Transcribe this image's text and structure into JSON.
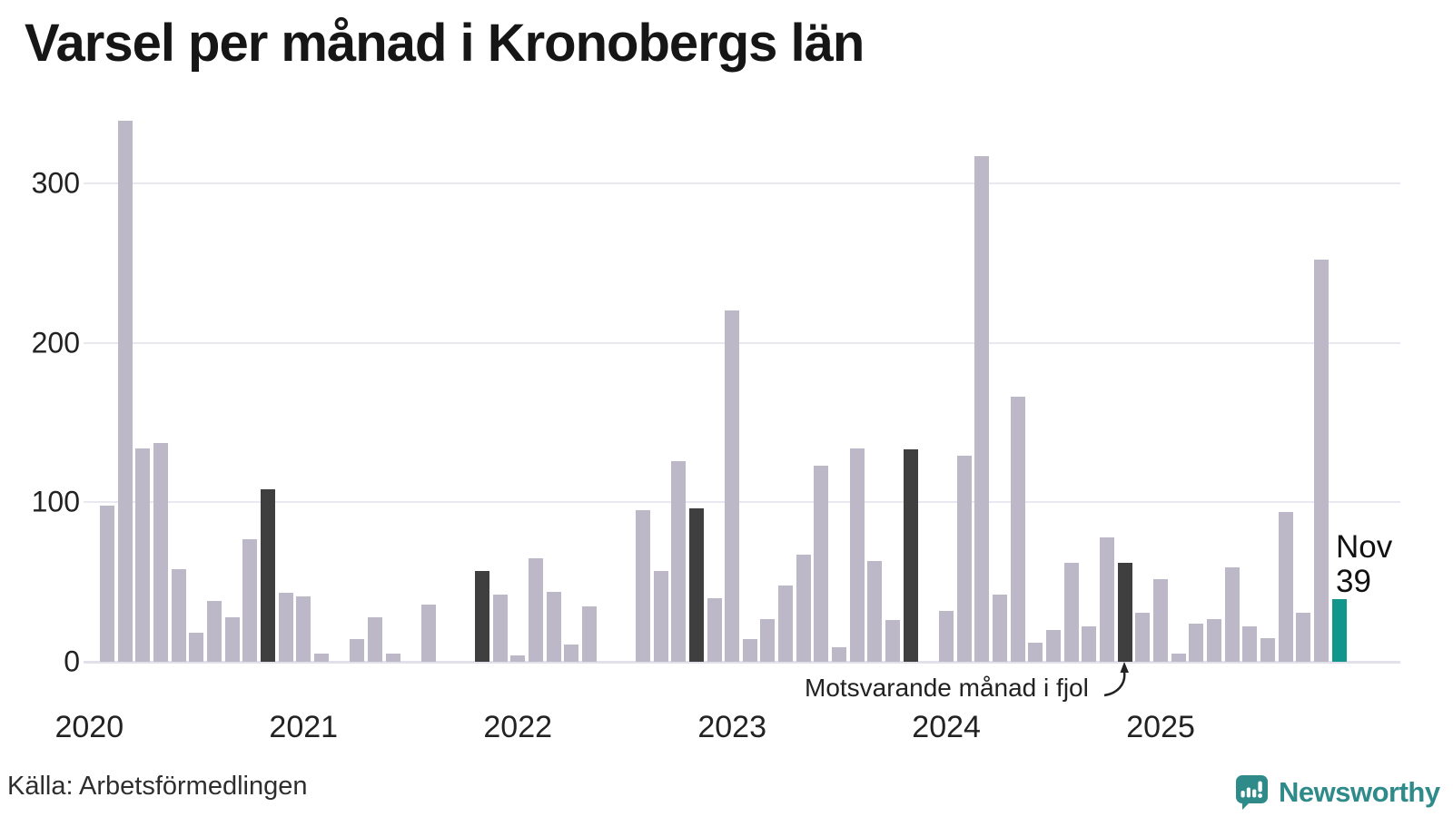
{
  "title": "Varsel per månad i Kronobergs län",
  "source": "Källa: Arbetsförmedlingen",
  "annotation": "Motsvarande månad i fjol",
  "highlight_label": {
    "month": "Nov",
    "value": "39"
  },
  "logo": {
    "text": "Newsworthy",
    "icon": "newsworthy-speech-bubble-chart-icon"
  },
  "colors": {
    "bar": "#bcb8c8",
    "last_year_bar": "#3f3f3f",
    "latest_bar": "#12968b",
    "logo_teal": "#2e8b89",
    "grid": "#e9e7ef",
    "axis": "#e2e0e9",
    "text": "#222222"
  },
  "chart_data": {
    "type": "bar",
    "title": "Varsel per månad i Kronobergs län",
    "xlabel": "",
    "ylabel": "",
    "y_ticks": [
      0,
      100,
      200,
      300
    ],
    "ylim": [
      0,
      345
    ],
    "grid": "horizontal",
    "legend_position": "none",
    "year_ticks": [
      "2020",
      "2021",
      "2022",
      "2023",
      "2024",
      "2025"
    ],
    "highlight_note": "dark bars = same month (Nov) previous years; teal bar = latest month Nov 2025 = 39",
    "months": [
      {
        "m": "2020-01",
        "value": 0,
        "kind": "normal"
      },
      {
        "m": "2020-02",
        "value": 98,
        "kind": "normal"
      },
      {
        "m": "2020-03",
        "value": 339,
        "kind": "normal"
      },
      {
        "m": "2020-04",
        "value": 134,
        "kind": "normal"
      },
      {
        "m": "2020-05",
        "value": 137,
        "kind": "normal"
      },
      {
        "m": "2020-06",
        "value": 58,
        "kind": "normal"
      },
      {
        "m": "2020-07",
        "value": 18,
        "kind": "normal"
      },
      {
        "m": "2020-08",
        "value": 38,
        "kind": "normal"
      },
      {
        "m": "2020-09",
        "value": 28,
        "kind": "normal"
      },
      {
        "m": "2020-10",
        "value": 77,
        "kind": "normal"
      },
      {
        "m": "2020-11",
        "value": 108,
        "kind": "lastyear"
      },
      {
        "m": "2020-12",
        "value": 43,
        "kind": "normal"
      },
      {
        "m": "2021-01",
        "value": 41,
        "kind": "normal"
      },
      {
        "m": "2021-02",
        "value": 5,
        "kind": "normal"
      },
      {
        "m": "2021-03",
        "value": 0,
        "kind": "normal"
      },
      {
        "m": "2021-04",
        "value": 14,
        "kind": "normal"
      },
      {
        "m": "2021-05",
        "value": 28,
        "kind": "normal"
      },
      {
        "m": "2021-06",
        "value": 5,
        "kind": "normal"
      },
      {
        "m": "2021-07",
        "value": 0,
        "kind": "normal"
      },
      {
        "m": "2021-08",
        "value": 36,
        "kind": "normal"
      },
      {
        "m": "2021-09",
        "value": 0,
        "kind": "normal"
      },
      {
        "m": "2021-10",
        "value": 0,
        "kind": "normal"
      },
      {
        "m": "2021-11",
        "value": 57,
        "kind": "lastyear"
      },
      {
        "m": "2021-12",
        "value": 42,
        "kind": "normal"
      },
      {
        "m": "2022-01",
        "value": 4,
        "kind": "normal"
      },
      {
        "m": "2022-02",
        "value": 65,
        "kind": "normal"
      },
      {
        "m": "2022-03",
        "value": 44,
        "kind": "normal"
      },
      {
        "m": "2022-04",
        "value": 11,
        "kind": "normal"
      },
      {
        "m": "2022-05",
        "value": 35,
        "kind": "normal"
      },
      {
        "m": "2022-06",
        "value": 0,
        "kind": "normal"
      },
      {
        "m": "2022-07",
        "value": 0,
        "kind": "normal"
      },
      {
        "m": "2022-08",
        "value": 95,
        "kind": "normal"
      },
      {
        "m": "2022-09",
        "value": 57,
        "kind": "normal"
      },
      {
        "m": "2022-10",
        "value": 126,
        "kind": "normal"
      },
      {
        "m": "2022-11",
        "value": 96,
        "kind": "lastyear"
      },
      {
        "m": "2022-12",
        "value": 40,
        "kind": "normal"
      },
      {
        "m": "2023-01",
        "value": 220,
        "kind": "normal"
      },
      {
        "m": "2023-02",
        "value": 14,
        "kind": "normal"
      },
      {
        "m": "2023-03",
        "value": 27,
        "kind": "normal"
      },
      {
        "m": "2023-04",
        "value": 48,
        "kind": "normal"
      },
      {
        "m": "2023-05",
        "value": 67,
        "kind": "normal"
      },
      {
        "m": "2023-06",
        "value": 123,
        "kind": "normal"
      },
      {
        "m": "2023-07",
        "value": 9,
        "kind": "normal"
      },
      {
        "m": "2023-08",
        "value": 134,
        "kind": "normal"
      },
      {
        "m": "2023-09",
        "value": 63,
        "kind": "normal"
      },
      {
        "m": "2023-10",
        "value": 26,
        "kind": "normal"
      },
      {
        "m": "2023-11",
        "value": 133,
        "kind": "lastyear"
      },
      {
        "m": "2023-12",
        "value": 0,
        "kind": "normal"
      },
      {
        "m": "2024-01",
        "value": 32,
        "kind": "normal"
      },
      {
        "m": "2024-02",
        "value": 129,
        "kind": "normal"
      },
      {
        "m": "2024-03",
        "value": 317,
        "kind": "normal"
      },
      {
        "m": "2024-04",
        "value": 42,
        "kind": "normal"
      },
      {
        "m": "2024-05",
        "value": 166,
        "kind": "normal"
      },
      {
        "m": "2024-06",
        "value": 12,
        "kind": "normal"
      },
      {
        "m": "2024-07",
        "value": 20,
        "kind": "normal"
      },
      {
        "m": "2024-08",
        "value": 62,
        "kind": "normal"
      },
      {
        "m": "2024-09",
        "value": 22,
        "kind": "normal"
      },
      {
        "m": "2024-10",
        "value": 78,
        "kind": "normal"
      },
      {
        "m": "2024-11",
        "value": 62,
        "kind": "lastyear"
      },
      {
        "m": "2024-12",
        "value": 31,
        "kind": "normal"
      },
      {
        "m": "2025-01",
        "value": 52,
        "kind": "normal"
      },
      {
        "m": "2025-02",
        "value": 5,
        "kind": "normal"
      },
      {
        "m": "2025-03",
        "value": 24,
        "kind": "normal"
      },
      {
        "m": "2025-04",
        "value": 27,
        "kind": "normal"
      },
      {
        "m": "2025-05",
        "value": 59,
        "kind": "normal"
      },
      {
        "m": "2025-06",
        "value": 22,
        "kind": "normal"
      },
      {
        "m": "2025-07",
        "value": 15,
        "kind": "normal"
      },
      {
        "m": "2025-08",
        "value": 94,
        "kind": "normal"
      },
      {
        "m": "2025-09",
        "value": 31,
        "kind": "normal"
      },
      {
        "m": "2025-10",
        "value": 252,
        "kind": "normal"
      },
      {
        "m": "2025-11",
        "value": 39,
        "kind": "latest"
      }
    ]
  }
}
